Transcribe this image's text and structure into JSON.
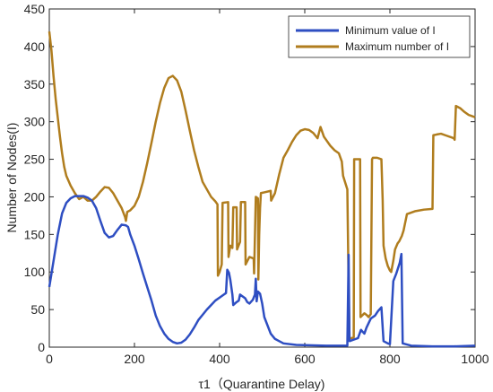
{
  "chart_data": {
    "type": "line",
    "title": "",
    "xlabel": "τ1（Quarantine Delay)",
    "ylabel": "Number of Nodes(I)",
    "xlim": [
      0,
      1000
    ],
    "ylim": [
      0,
      450
    ],
    "xticks": [
      0,
      200,
      400,
      600,
      800,
      1000
    ],
    "yticks": [
      0,
      50,
      100,
      150,
      200,
      250,
      300,
      350,
      400,
      450
    ],
    "grid": false,
    "legend_position": "top-right",
    "series": [
      {
        "name": "Minimum value of I",
        "color": "#2e4ec2",
        "points": [
          [
            0,
            80
          ],
          [
            10,
            115
          ],
          [
            20,
            150
          ],
          [
            30,
            178
          ],
          [
            40,
            192
          ],
          [
            50,
            198
          ],
          [
            60,
            201
          ],
          [
            80,
            201
          ],
          [
            90,
            199
          ],
          [
            100,
            195
          ],
          [
            110,
            185
          ],
          [
            120,
            168
          ],
          [
            130,
            152
          ],
          [
            140,
            146
          ],
          [
            150,
            148
          ],
          [
            160,
            156
          ],
          [
            170,
            163
          ],
          [
            180,
            162
          ],
          [
            185,
            160
          ],
          [
            190,
            150
          ],
          [
            200,
            135
          ],
          [
            210,
            117
          ],
          [
            220,
            98
          ],
          [
            230,
            80
          ],
          [
            240,
            62
          ],
          [
            250,
            42
          ],
          [
            260,
            28
          ],
          [
            270,
            18
          ],
          [
            280,
            11
          ],
          [
            290,
            7
          ],
          [
            300,
            5
          ],
          [
            310,
            6
          ],
          [
            320,
            10
          ],
          [
            330,
            17
          ],
          [
            340,
            26
          ],
          [
            350,
            36
          ],
          [
            360,
            43
          ],
          [
            370,
            50
          ],
          [
            380,
            56
          ],
          [
            390,
            62
          ],
          [
            400,
            66
          ],
          [
            410,
            70
          ],
          [
            415,
            72
          ],
          [
            418,
            103
          ],
          [
            422,
            99
          ],
          [
            425,
            90
          ],
          [
            430,
            70
          ],
          [
            432,
            56
          ],
          [
            440,
            60
          ],
          [
            445,
            62
          ],
          [
            448,
            70
          ],
          [
            460,
            65
          ],
          [
            465,
            60
          ],
          [
            470,
            58
          ],
          [
            478,
            63
          ],
          [
            483,
            70
          ],
          [
            485,
            91
          ],
          [
            487,
            61
          ],
          [
            490,
            74
          ],
          [
            495,
            71
          ],
          [
            500,
            58
          ],
          [
            505,
            40
          ],
          [
            520,
            18
          ],
          [
            530,
            11
          ],
          [
            540,
            8
          ],
          [
            550,
            5
          ],
          [
            580,
            3
          ],
          [
            650,
            2
          ],
          [
            700,
            2
          ],
          [
            703,
            123
          ],
          [
            705,
            8
          ],
          [
            715,
            10
          ],
          [
            725,
            12
          ],
          [
            732,
            23
          ],
          [
            740,
            18
          ],
          [
            745,
            26
          ],
          [
            755,
            38
          ],
          [
            765,
            42
          ],
          [
            772,
            48
          ],
          [
            780,
            53
          ],
          [
            785,
            8
          ],
          [
            795,
            5
          ],
          [
            800,
            4
          ],
          [
            808,
            88
          ],
          [
            815,
            98
          ],
          [
            823,
            112
          ],
          [
            827,
            124
          ],
          [
            830,
            5
          ],
          [
            850,
            2
          ],
          [
            900,
            1
          ],
          [
            950,
            1
          ],
          [
            1000,
            2
          ]
        ]
      },
      {
        "name": "Maximum number of I",
        "color": "#b07d1e",
        "points": [
          [
            0,
            420
          ],
          [
            5,
            395
          ],
          [
            10,
            360
          ],
          [
            15,
            330
          ],
          [
            20,
            305
          ],
          [
            25,
            280
          ],
          [
            30,
            258
          ],
          [
            35,
            240
          ],
          [
            40,
            228
          ],
          [
            50,
            215
          ],
          [
            60,
            205
          ],
          [
            70,
            197
          ],
          [
            80,
            200
          ],
          [
            90,
            195
          ],
          [
            100,
            195
          ],
          [
            110,
            200
          ],
          [
            120,
            207
          ],
          [
            130,
            213
          ],
          [
            140,
            212
          ],
          [
            150,
            205
          ],
          [
            160,
            195
          ],
          [
            170,
            185
          ],
          [
            178,
            173
          ],
          [
            180,
            168
          ],
          [
            183,
            180
          ],
          [
            190,
            182
          ],
          [
            200,
            188
          ],
          [
            210,
            200
          ],
          [
            220,
            220
          ],
          [
            230,
            245
          ],
          [
            240,
            272
          ],
          [
            250,
            300
          ],
          [
            260,
            325
          ],
          [
            270,
            345
          ],
          [
            280,
            358
          ],
          [
            290,
            361
          ],
          [
            300,
            355
          ],
          [
            310,
            340
          ],
          [
            320,
            315
          ],
          [
            330,
            288
          ],
          [
            340,
            262
          ],
          [
            350,
            240
          ],
          [
            360,
            220
          ],
          [
            370,
            210
          ],
          [
            380,
            200
          ],
          [
            390,
            194
          ],
          [
            395,
            190
          ],
          [
            396,
            95
          ],
          [
            400,
            100
          ],
          [
            405,
            110
          ],
          [
            407,
            192
          ],
          [
            420,
            193
          ],
          [
            421,
            120
          ],
          [
            425,
            135
          ],
          [
            430,
            132
          ],
          [
            432,
            186
          ],
          [
            440,
            186
          ],
          [
            441,
            130
          ],
          [
            448,
            140
          ],
          [
            450,
            193
          ],
          [
            460,
            193
          ],
          [
            461,
            110
          ],
          [
            470,
            120
          ],
          [
            480,
            118
          ],
          [
            481,
            98
          ],
          [
            485,
            200
          ],
          [
            490,
            198
          ],
          [
            491,
            90
          ],
          [
            493,
            150
          ],
          [
            495,
            185
          ],
          [
            497,
            205
          ],
          [
            505,
            206
          ],
          [
            520,
            208
          ],
          [
            521,
            195
          ],
          [
            530,
            205
          ],
          [
            540,
            230
          ],
          [
            550,
            252
          ],
          [
            560,
            262
          ],
          [
            570,
            273
          ],
          [
            580,
            282
          ],
          [
            590,
            288
          ],
          [
            600,
            290
          ],
          [
            610,
            289
          ],
          [
            620,
            285
          ],
          [
            630,
            278
          ],
          [
            637,
            293
          ],
          [
            645,
            280
          ],
          [
            660,
            268
          ],
          [
            670,
            262
          ],
          [
            680,
            258
          ],
          [
            687,
            247
          ],
          [
            690,
            228
          ],
          [
            700,
            210
          ],
          [
            703,
            80
          ],
          [
            705,
            12
          ],
          [
            710,
            12
          ],
          [
            715,
            13
          ],
          [
            716,
            250
          ],
          [
            730,
            250
          ],
          [
            731,
            40
          ],
          [
            740,
            45
          ],
          [
            745,
            43
          ],
          [
            750,
            40
          ],
          [
            755,
            44
          ],
          [
            758,
            250
          ],
          [
            760,
            252
          ],
          [
            770,
            252
          ],
          [
            780,
            250
          ],
          [
            783,
            195
          ],
          [
            785,
            135
          ],
          [
            790,
            118
          ],
          [
            795,
            108
          ],
          [
            800,
            102
          ],
          [
            803,
            100
          ],
          [
            808,
            115
          ],
          [
            812,
            130
          ],
          [
            818,
            138
          ],
          [
            822,
            141
          ],
          [
            828,
            148
          ],
          [
            832,
            155
          ],
          [
            840,
            177
          ],
          [
            860,
            181
          ],
          [
            880,
            183
          ],
          [
            900,
            184
          ],
          [
            902,
            282
          ],
          [
            910,
            283
          ],
          [
            920,
            284
          ],
          [
            930,
            282
          ],
          [
            950,
            278
          ],
          [
            952,
            276
          ],
          [
            955,
            321
          ],
          [
            965,
            318
          ],
          [
            975,
            313
          ],
          [
            985,
            309
          ],
          [
            1000,
            306
          ]
        ]
      }
    ]
  }
}
